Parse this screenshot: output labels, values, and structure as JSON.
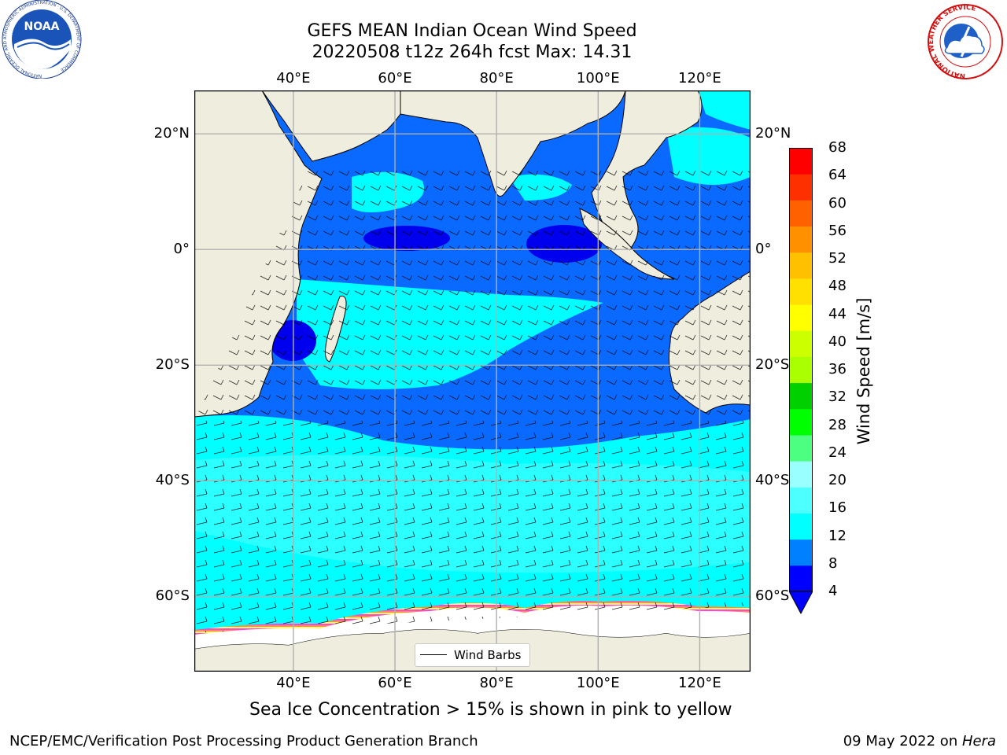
{
  "title": {
    "line1": "GEFS MEAN Indian Ocean Wind Speed",
    "line2": "20220508 t12z 264h fcst   Max: 14.31"
  },
  "axes": {
    "lon_labels": [
      "40°E",
      "60°E",
      "80°E",
      "100°E",
      "120°E"
    ],
    "lat_labels": [
      "20°N",
      "0°",
      "20°S",
      "40°S",
      "60°S"
    ],
    "lon_values": [
      40,
      60,
      80,
      100,
      120
    ],
    "lat_values": [
      20,
      0,
      -20,
      -40,
      -60
    ],
    "lon_range": [
      20.5,
      130
    ],
    "lat_range": [
      -73,
      27.5
    ]
  },
  "legend": {
    "label": "Wind Barbs"
  },
  "colorbar": {
    "label": "Wind Speed [m/s]",
    "ticks": [
      "68",
      "64",
      "60",
      "56",
      "52",
      "48",
      "44",
      "40",
      "36",
      "32",
      "28",
      "24",
      "20",
      "16",
      "12",
      "8",
      "4"
    ],
    "colors": [
      "#0000ff",
      "#0080ff",
      "#00ffff",
      "#4dffff",
      "#99ffff",
      "#4dff80",
      "#00ff00",
      "#00d000",
      "#aaff00",
      "#ccff00",
      "#ffff00",
      "#ffe000",
      "#ffc000",
      "#ff9000",
      "#ff6000",
      "#ff3000",
      "#ff0000"
    ],
    "min": 4,
    "max": 68,
    "extend": "min"
  },
  "map": {
    "region": "Indian Ocean",
    "ocean_colors": {
      "dark_blue": "#0000ee",
      "blue": "#0a6aff",
      "cyan": "#00ffff",
      "light_cyan": "#50ffff",
      "land": "#efedde",
      "ice": "#ffffff",
      "ice_edge": [
        "#ff40ff",
        "#ff9040",
        "#ffff60"
      ]
    },
    "max_wind": 14.31
  },
  "notes": {
    "ice": "Sea Ice Concentration > 15% is shown in pink to yellow"
  },
  "footer": {
    "left": "NCEP/EMC/Verification Post Processing Product Generation Branch",
    "right_prefix": "09 May 2022 on ",
    "right_host": "Hera"
  },
  "logos": {
    "noaa": "NOAA",
    "noaa_ring": "NATIONAL OCEANIC AND ATMOSPHERIC ADMINISTRATION · U.S. DEPARTMENT OF COMMERCE",
    "nws": "NATIONAL WEATHER SERVICE"
  }
}
